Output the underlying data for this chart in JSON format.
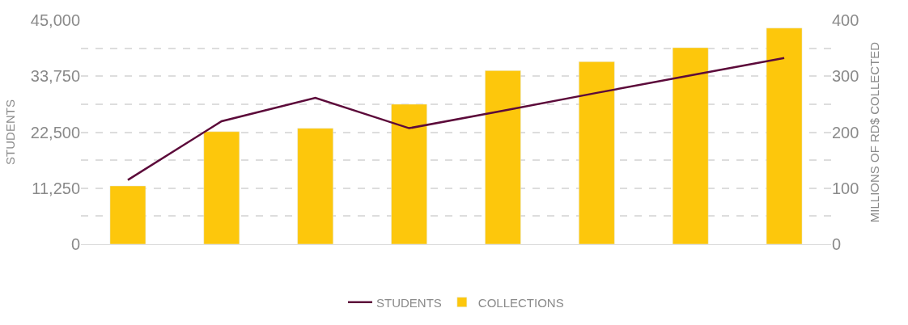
{
  "chart_data": {
    "type": "bar",
    "ylabel": "STUDENTS",
    "y2label": "MILLIONS OF RD$ COLLECTED",
    "categories": [
      null,
      null,
      null,
      null,
      null,
      null,
      null,
      null
    ],
    "series": [
      {
        "name": "STUDENTS",
        "type": "line",
        "color": "#5c0a3a",
        "values": [
          12900,
          24700,
          29400,
          23300,
          26800,
          30400,
          33900,
          37400
        ]
      },
      {
        "name": "COLLECTIONS",
        "axis": "y2",
        "color": "#fdc70c",
        "values": [
          104,
          201,
          207,
          250,
          310,
          326,
          351,
          386
        ]
      }
    ],
    "ylim": [
      0,
      45000
    ],
    "yticks": [
      0,
      {
        "value": 5625,
        "label": null
      },
      {
        "value": 11250,
        "label": "11,250"
      },
      {
        "value": 16875,
        "label": null
      },
      {
        "value": 22500,
        "label": "22,500"
      },
      {
        "value": 28125,
        "label": null
      },
      {
        "value": 33750,
        "label": "33,750"
      },
      {
        "value": 39375,
        "label": null
      },
      {
        "value": 45000,
        "label": "45,000"
      }
    ],
    "y2lim": [
      0,
      400
    ],
    "y2ticks": [
      0,
      100,
      200,
      300,
      400
    ],
    "grid": "y",
    "legend": "bottom",
    "marker": "none"
  }
}
